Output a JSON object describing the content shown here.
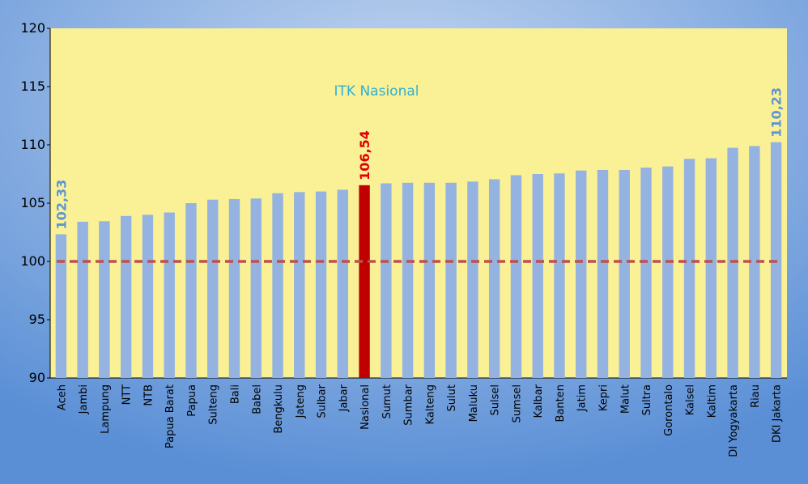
{
  "chart_data": {
    "type": "bar",
    "annotation": "ITK Nasional",
    "categories": [
      "Aceh",
      "Jambi",
      "Lampung",
      "NTT",
      "NTB",
      "Papua Barat",
      "Papua",
      "Sulteng",
      "Bali",
      "Babel",
      "Bengkulu",
      "Jateng",
      "Sulbar",
      "Jabar",
      "Nasional",
      "Sumut",
      "Sumbar",
      "Kalteng",
      "Sulut",
      "Maluku",
      "Sulsel",
      "Sumsel",
      "Kalbar",
      "Banten",
      "Jatim",
      "Kepri",
      "Malut",
      "Sultra",
      "Gorontalo",
      "Kalsel",
      "Kaltim",
      "DI Yogyakarta",
      "Riau",
      "DKI Jakarta"
    ],
    "values": [
      102.33,
      103.4,
      103.45,
      103.9,
      104.0,
      104.2,
      105.0,
      105.3,
      105.35,
      105.4,
      105.85,
      105.95,
      106.0,
      106.15,
      106.54,
      106.7,
      106.75,
      106.75,
      106.75,
      106.85,
      107.05,
      107.4,
      107.5,
      107.55,
      107.8,
      107.85,
      107.85,
      108.05,
      108.15,
      108.8,
      108.85,
      109.75,
      109.9,
      110.23
    ],
    "value_labels": [
      "102,33",
      null,
      null,
      null,
      null,
      null,
      null,
      null,
      null,
      null,
      null,
      null,
      null,
      null,
      "106,54",
      null,
      null,
      null,
      null,
      null,
      null,
      null,
      null,
      null,
      null,
      null,
      null,
      null,
      null,
      null,
      null,
      null,
      null,
      "110,23"
    ],
    "color": "#95b3e0",
    "bar_colors": [
      null,
      null,
      null,
      null,
      null,
      null,
      null,
      null,
      null,
      null,
      null,
      null,
      null,
      null,
      "#c00000",
      null,
      null,
      null,
      null,
      null,
      null,
      null,
      null,
      null,
      null,
      null,
      null,
      null,
      null,
      null,
      null,
      null,
      null,
      null
    ],
    "value_label_colors": [
      "#5b95d6",
      null,
      null,
      null,
      null,
      null,
      null,
      null,
      null,
      null,
      null,
      null,
      null,
      null,
      "#e00000",
      null,
      null,
      null,
      null,
      null,
      null,
      null,
      null,
      null,
      null,
      null,
      null,
      null,
      null,
      null,
      null,
      null,
      null,
      "#5b95d6"
    ],
    "reference_line": {
      "value": 100,
      "color": "#c0504d"
    },
    "ylim": [
      90,
      120
    ],
    "yticks": [
      90,
      95,
      100,
      105,
      110,
      115,
      120
    ],
    "grid": false
  }
}
